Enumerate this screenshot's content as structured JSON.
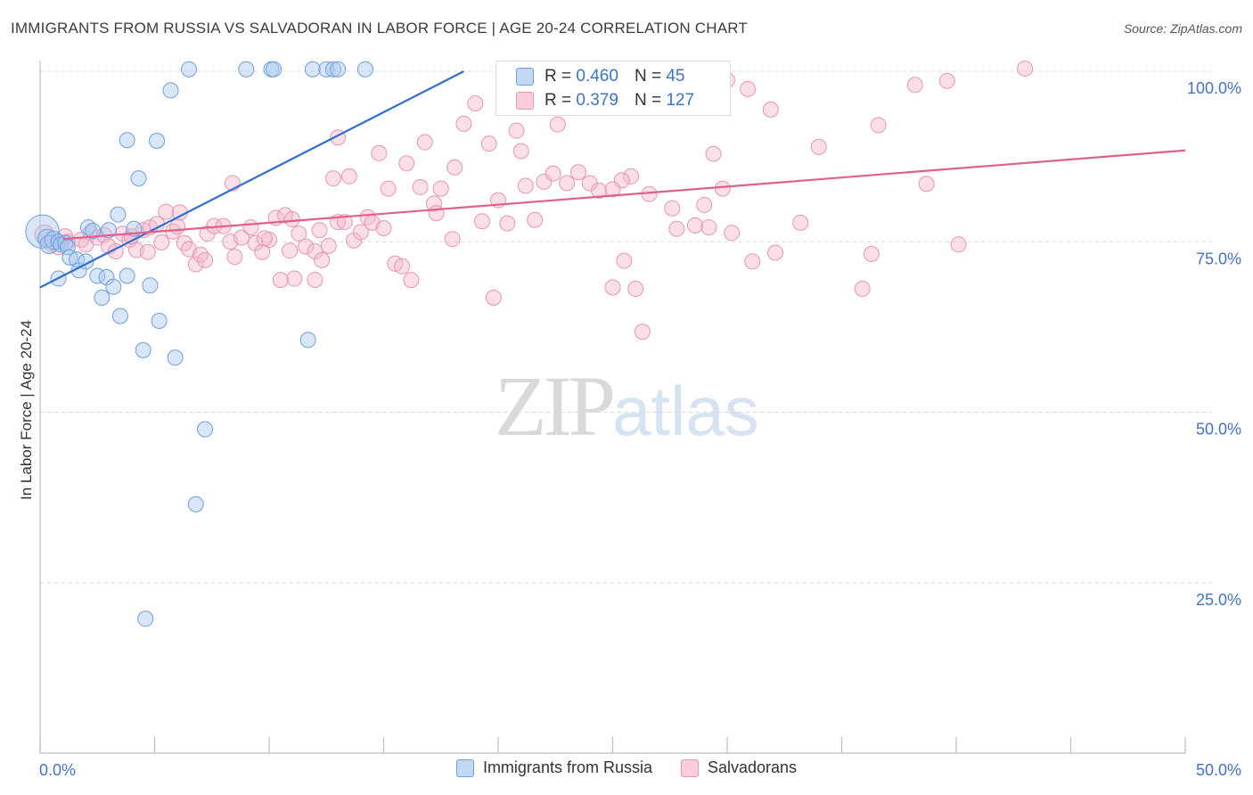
{
  "title": "IMMIGRANTS FROM RUSSIA VS SALVADORAN IN LABOR FORCE | AGE 20-24 CORRELATION CHART",
  "source": "Source: ZipAtlas.com",
  "watermark": {
    "zip": "ZIP",
    "atlas": "atlas"
  },
  "legend_top": {
    "rows": [
      {
        "r_label": "R =",
        "r_value": "0.460",
        "n_label": "N =",
        "n_value": "45"
      },
      {
        "r_label": "R =",
        "r_value": "0.379",
        "n_label": "N =",
        "n_value": "127"
      }
    ]
  },
  "legend_bottom": {
    "items": [
      {
        "label": "Immigrants from Russia"
      },
      {
        "label": "Salvadorans"
      }
    ]
  },
  "colors": {
    "blue_fill": "#a9c8ee",
    "blue_stroke": "#6f9fdc",
    "blue_line": "#2f6fcf",
    "pink_fill": "#f5b8cb",
    "pink_stroke": "#e895b0",
    "pink_line": "#e05f8f",
    "grid": "#d9d9d9",
    "tick_label": "#4472c4",
    "axis": "#bdbdbd"
  },
  "chart_data": {
    "type": "scatter",
    "title": "IMMIGRANTS FROM RUSSIA VS SALVADORAN IN LABOR FORCE | AGE 20-24 CORRELATION CHART",
    "xlabel": "",
    "ylabel": "In Labor Force | Age 20-24",
    "xlim": [
      0,
      50
    ],
    "ylim": [
      0,
      100
    ],
    "x_tick_labels": [
      "0.0%",
      "50.0%"
    ],
    "y_tick_labels": [
      "25.0%",
      "50.0%",
      "75.0%",
      "100.0%"
    ],
    "y_ticks": [
      25,
      50,
      75,
      100
    ],
    "grid": true,
    "legend_position": "top-center",
    "series": [
      {
        "name": "Immigrants from Russia",
        "color": "blue",
        "r": 0.46,
        "n": 45,
        "trend": {
          "x": [
            0,
            18.5
          ],
          "y": [
            68.3,
            100
          ]
        },
        "points": [
          [
            0.1,
            76.5,
            2.2
          ],
          [
            0.3,
            75.5,
            1.2
          ],
          [
            0.4,
            74.6,
            1.2
          ],
          [
            0.6,
            75.2,
            1.2
          ],
          [
            0.8,
            75.0,
            1.0
          ],
          [
            0.9,
            74.6,
            1.0
          ],
          [
            1.1,
            74.8,
            1.0
          ],
          [
            1.2,
            74.2,
            1.0
          ],
          [
            0.8,
            69.6,
            1.0
          ],
          [
            1.3,
            72.7,
            1.0
          ],
          [
            1.6,
            72.4,
            1.0
          ],
          [
            1.7,
            70.8,
            1.0
          ],
          [
            2.0,
            72.1,
            1.0
          ],
          [
            2.1,
            77.1,
            1.0
          ],
          [
            2.3,
            76.6,
            1.0
          ],
          [
            2.5,
            70.0,
            1.0
          ],
          [
            2.7,
            66.8,
            1.0
          ],
          [
            2.9,
            69.8,
            1.0
          ],
          [
            3.2,
            68.4,
            1.0
          ],
          [
            3.0,
            76.7,
            1.0
          ],
          [
            3.5,
            64.1,
            1.0
          ],
          [
            3.4,
            79.0,
            1.0
          ],
          [
            3.8,
            70.0,
            1.0
          ],
          [
            4.1,
            76.9,
            1.0
          ],
          [
            4.3,
            84.3,
            1.0
          ],
          [
            4.5,
            59.1,
            1.0
          ],
          [
            4.8,
            68.6,
            1.0
          ],
          [
            5.2,
            63.4,
            1.0
          ],
          [
            3.8,
            89.9,
            1.0
          ],
          [
            5.1,
            89.8,
            1.0
          ],
          [
            5.7,
            97.2,
            1.0
          ],
          [
            5.9,
            58.0,
            1.0
          ],
          [
            7.2,
            47.5,
            1.0
          ],
          [
            6.8,
            36.5,
            1.0
          ],
          [
            4.6,
            19.7,
            1.0
          ],
          [
            11.7,
            60.6,
            1.0
          ],
          [
            6.5,
            100.3,
            1.0
          ],
          [
            9.0,
            100.3,
            1.0
          ],
          [
            10.1,
            100.3,
            1.0
          ],
          [
            10.2,
            100.3,
            1.0
          ],
          [
            11.9,
            100.3,
            1.0
          ],
          [
            12.5,
            100.3,
            1.0
          ],
          [
            12.8,
            100.3,
            1.0
          ],
          [
            13.0,
            100.3,
            1.0
          ],
          [
            14.2,
            100.3,
            1.0
          ]
        ]
      },
      {
        "name": "Salvadorans",
        "color": "pink",
        "r": 0.379,
        "n": 127,
        "trend": {
          "x": [
            1.0,
            50.0
          ],
          "y": [
            75.4,
            88.4
          ]
        },
        "points": [
          [
            0.2,
            76.0,
            1.3
          ],
          [
            0.5,
            74.8,
            1.1
          ],
          [
            0.8,
            74.2,
            1.0
          ],
          [
            1.1,
            75.8,
            1.0
          ],
          [
            1.2,
            75.0,
            1.0
          ],
          [
            1.8,
            75.3,
            1.0
          ],
          [
            2.0,
            74.6,
            1.0
          ],
          [
            2.2,
            76.3,
            1.0
          ],
          [
            2.5,
            75.6,
            1.0
          ],
          [
            2.8,
            76.0,
            1.0
          ],
          [
            3.0,
            74.3,
            1.0
          ],
          [
            3.3,
            73.6,
            1.0
          ],
          [
            3.6,
            76.2,
            1.0
          ],
          [
            3.9,
            75.3,
            1.0
          ],
          [
            4.2,
            73.8,
            1.0
          ],
          [
            4.0,
            75.8,
            1.0
          ],
          [
            4.5,
            76.7,
            1.0
          ],
          [
            4.8,
            77.1,
            1.0
          ],
          [
            5.1,
            77.6,
            1.0
          ],
          [
            5.3,
            74.9,
            1.0
          ],
          [
            5.5,
            79.4,
            1.0
          ],
          [
            5.8,
            76.5,
            1.0
          ],
          [
            6.0,
            77.2,
            1.0
          ],
          [
            6.3,
            74.8,
            1.0
          ],
          [
            6.5,
            73.9,
            1.0
          ],
          [
            6.8,
            71.7,
            1.0
          ],
          [
            7.0,
            73.1,
            1.0
          ],
          [
            7.3,
            76.2,
            1.0
          ],
          [
            7.6,
            77.3,
            1.0
          ],
          [
            8.0,
            77.3,
            1.0
          ],
          [
            8.3,
            75.0,
            1.0
          ],
          [
            8.5,
            72.8,
            1.0
          ],
          [
            8.8,
            75.6,
            1.0
          ],
          [
            9.2,
            77.1,
            1.0
          ],
          [
            9.4,
            74.8,
            1.0
          ],
          [
            9.7,
            73.5,
            1.0
          ],
          [
            10.0,
            75.3,
            1.0
          ],
          [
            10.3,
            78.5,
            1.0
          ],
          [
            10.7,
            78.9,
            1.0
          ],
          [
            11.0,
            78.3,
            1.0
          ],
          [
            11.3,
            76.2,
            1.0
          ],
          [
            11.6,
            74.3,
            1.0
          ],
          [
            12.0,
            73.6,
            1.0
          ],
          [
            12.3,
            72.3,
            1.0
          ],
          [
            12.6,
            74.4,
            1.0
          ],
          [
            13.0,
            77.9,
            1.0
          ],
          [
            13.3,
            77.9,
            1.0
          ],
          [
            13.7,
            75.2,
            1.0
          ],
          [
            14.0,
            76.4,
            1.0
          ],
          [
            14.3,
            78.6,
            1.0
          ],
          [
            14.5,
            77.8,
            1.0
          ],
          [
            15.0,
            77.0,
            1.0
          ],
          [
            15.5,
            71.8,
            1.0
          ],
          [
            15.8,
            71.4,
            1.0
          ],
          [
            16.2,
            69.4,
            1.0
          ],
          [
            16.6,
            83.0,
            1.0
          ],
          [
            17.2,
            80.6,
            1.0
          ],
          [
            17.5,
            82.8,
            1.0
          ],
          [
            18.0,
            75.4,
            1.0
          ],
          [
            18.5,
            92.3,
            1.0
          ],
          [
            19.0,
            95.3,
            1.0
          ],
          [
            19.3,
            78.0,
            1.0
          ],
          [
            19.6,
            89.4,
            1.0
          ],
          [
            20.0,
            81.1,
            1.0
          ],
          [
            20.4,
            77.7,
            1.0
          ],
          [
            20.8,
            91.3,
            1.0
          ],
          [
            21.2,
            83.2,
            1.0
          ],
          [
            21.6,
            78.2,
            1.0
          ],
          [
            22.0,
            83.8,
            1.0
          ],
          [
            22.6,
            92.2,
            1.0
          ],
          [
            23.0,
            83.6,
            1.0
          ],
          [
            23.5,
            85.2,
            1.0
          ],
          [
            24.0,
            83.6,
            1.0
          ],
          [
            24.4,
            82.5,
            1.0
          ],
          [
            25.0,
            68.3,
            1.0
          ],
          [
            25.5,
            72.2,
            1.0
          ],
          [
            26.0,
            68.1,
            1.0
          ],
          [
            26.3,
            61.8,
            1.0
          ],
          [
            15.2,
            82.8,
            1.0
          ],
          [
            16.0,
            86.5,
            1.0
          ],
          [
            13.5,
            84.6,
            1.0
          ],
          [
            12.8,
            84.3,
            1.0
          ],
          [
            12.0,
            69.4,
            1.0
          ],
          [
            11.1,
            69.6,
            1.0
          ],
          [
            10.5,
            69.4,
            1.0
          ],
          [
            9.8,
            75.5,
            1.0
          ],
          [
            14.8,
            88.0,
            1.0
          ],
          [
            13.0,
            90.3,
            1.0
          ],
          [
            16.8,
            89.6,
            1.0
          ],
          [
            8.4,
            83.6,
            1.0
          ],
          [
            7.2,
            72.3,
            1.0
          ],
          [
            4.7,
            73.5,
            1.0
          ],
          [
            6.1,
            79.3,
            1.0
          ],
          [
            12.2,
            76.7,
            1.0
          ],
          [
            10.9,
            73.7,
            1.0
          ],
          [
            19.8,
            66.8,
            1.0
          ],
          [
            17.3,
            79.2,
            1.0
          ],
          [
            18.1,
            85.9,
            1.0
          ],
          [
            21.0,
            88.3,
            1.0
          ],
          [
            22.4,
            85.0,
            1.0
          ],
          [
            25.8,
            84.6,
            1.0
          ],
          [
            26.6,
            82.0,
            1.0
          ],
          [
            25.4,
            84.0,
            1.0
          ],
          [
            25.0,
            82.7,
            1.0
          ],
          [
            29.0,
            80.4,
            1.0
          ],
          [
            27.6,
            79.9,
            1.0
          ],
          [
            29.8,
            82.8,
            1.0
          ],
          [
            28.6,
            77.4,
            1.0
          ],
          [
            29.2,
            77.1,
            1.0
          ],
          [
            27.8,
            76.9,
            1.0
          ],
          [
            30.2,
            76.3,
            1.0
          ],
          [
            32.1,
            73.4,
            1.0
          ],
          [
            31.1,
            72.1,
            1.0
          ],
          [
            33.2,
            77.8,
            1.0
          ],
          [
            34.0,
            88.9,
            1.0
          ],
          [
            30.0,
            98.7,
            1.0
          ],
          [
            30.9,
            97.4,
            1.0
          ],
          [
            31.9,
            94.4,
            1.0
          ],
          [
            29.4,
            87.9,
            1.0
          ],
          [
            35.9,
            68.1,
            1.0
          ],
          [
            36.3,
            73.2,
            1.0
          ],
          [
            36.6,
            92.1,
            1.0
          ],
          [
            38.7,
            83.5,
            1.0
          ],
          [
            40.1,
            74.6,
            1.0
          ],
          [
            38.2,
            98.0,
            1.0
          ],
          [
            39.6,
            98.6,
            1.0
          ],
          [
            43.0,
            100.4,
            1.0
          ]
        ]
      }
    ]
  }
}
